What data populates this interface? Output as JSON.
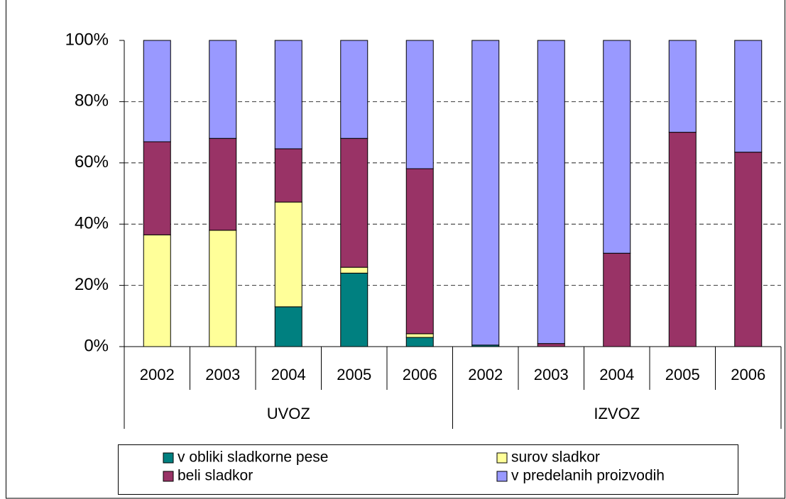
{
  "chart_data": {
    "type": "stacked_bar",
    "groups": [
      {
        "name": "UVOZ",
        "categories": [
          "2002",
          "2003",
          "2004",
          "2005",
          "2006"
        ]
      },
      {
        "name": "IZVOZ",
        "categories": [
          "2002",
          "2003",
          "2004",
          "2005",
          "2006"
        ]
      }
    ],
    "series": [
      {
        "name": "v obliki sladkorne pese",
        "color": "#008080",
        "values": [
          0,
          0,
          13,
          24,
          3,
          0.5,
          0,
          0,
          0,
          0
        ]
      },
      {
        "name": "surov sladkor",
        "color": "#ffff99",
        "values": [
          36.5,
          38,
          34.2,
          1.9,
          1.2,
          0,
          0,
          0,
          0,
          0
        ]
      },
      {
        "name": "beli sladkor",
        "color": "#993366",
        "values": [
          30.4,
          30,
          17.4,
          42.1,
          53.9,
          0,
          1,
          30.5,
          70,
          63.5
        ]
      },
      {
        "name": "v predelanih proizvodih",
        "color": "#9999ff",
        "values": [
          33.1,
          32,
          35.4,
          32,
          41.9,
          99.5,
          99,
          69.5,
          30,
          36.5
        ]
      }
    ],
    "ylim": [
      0,
      100
    ],
    "yticks": [
      {
        "value": 0,
        "label": "0%"
      },
      {
        "value": 20,
        "label": "20%"
      },
      {
        "value": 40,
        "label": "40%"
      },
      {
        "value": 60,
        "label": "60%"
      },
      {
        "value": 80,
        "label": "80%"
      },
      {
        "value": 100,
        "label": "100%"
      }
    ],
    "grid": true
  }
}
